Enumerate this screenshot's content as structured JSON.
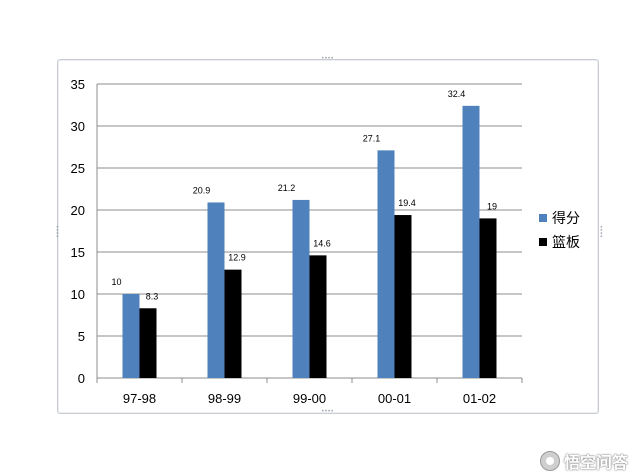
{
  "chart_data": {
    "type": "bar",
    "categories": [
      "97-98",
      "98-99",
      "99-00",
      "00-01",
      "01-02"
    ],
    "series": [
      {
        "name": "得分",
        "values": [
          10,
          20.9,
          21.2,
          27.1,
          32.4
        ],
        "labels": [
          "10",
          "20.9",
          "21.2",
          "27.1",
          "32.4"
        ],
        "color": "#4f81bd"
      },
      {
        "name": "篮板",
        "values": [
          8.3,
          12.9,
          14.6,
          19.4,
          19
        ],
        "labels": [
          "8.3",
          "12.9",
          "14.6",
          "19.4",
          "19"
        ],
        "color": "#000000"
      }
    ],
    "ylim": [
      0,
      35
    ],
    "yticks": [
      "0",
      "5",
      "10",
      "15",
      "20",
      "25",
      "30",
      "35"
    ],
    "grid": true,
    "legend": "right"
  },
  "watermark": {
    "text": "悟空问答",
    "icon": "wukong-logo-icon"
  }
}
